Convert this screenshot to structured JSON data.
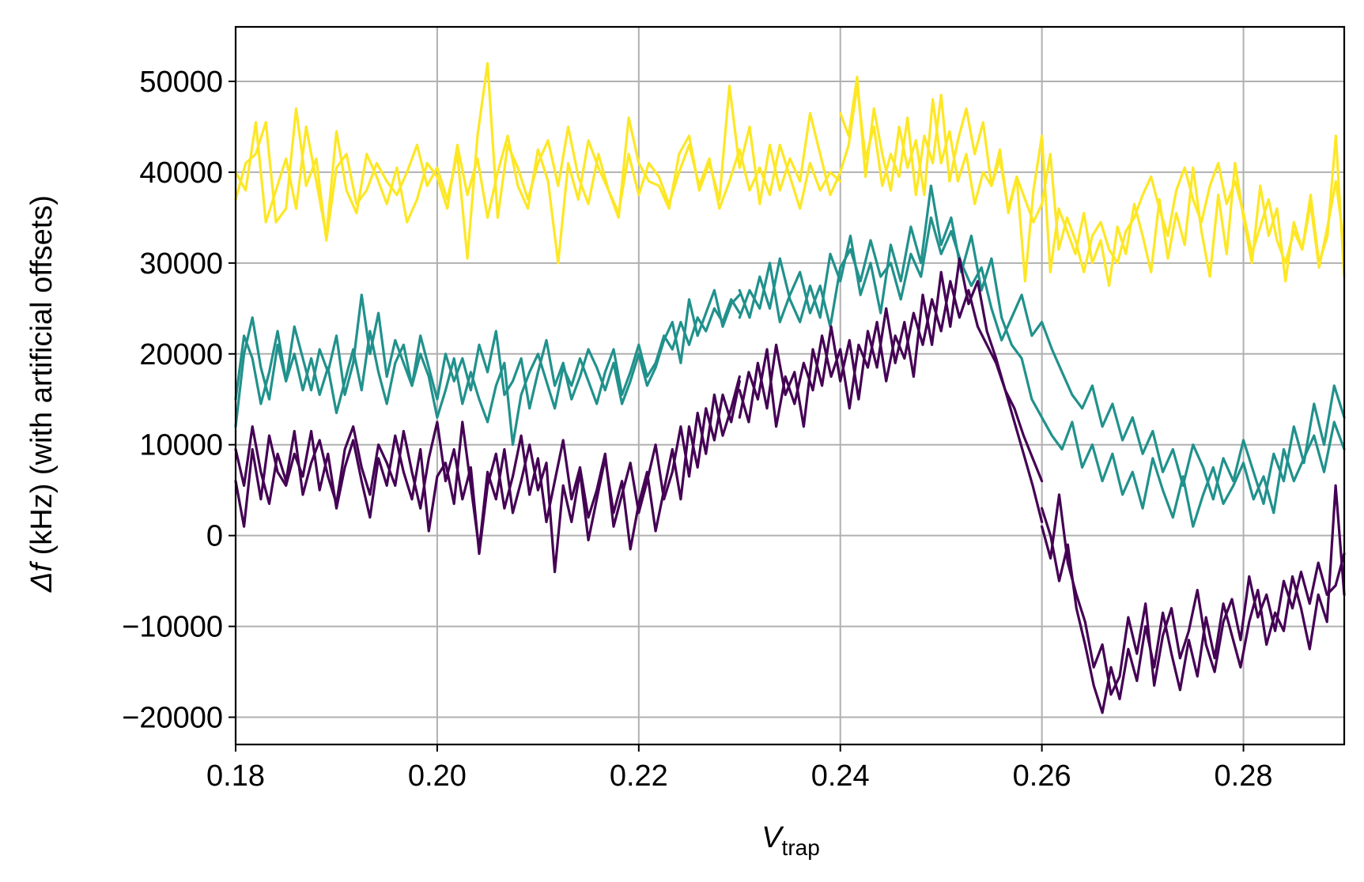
{
  "chart_data": {
    "type": "line",
    "title": "",
    "xlabel": "V",
    "xlabel_sub": "trap",
    "ylabel_symbol": "Δf",
    "ylabel": " (kHz) (with artificial offsets)",
    "xlim": [
      0.18,
      0.29
    ],
    "ylim": [
      -23000,
      56000
    ],
    "grid": true,
    "x_ticks": [
      0.18,
      0.2,
      0.22,
      0.24,
      0.26,
      0.28
    ],
    "x_tick_labels": [
      "0.18",
      "0.20",
      "0.22",
      "0.24",
      "0.26",
      "0.28"
    ],
    "y_ticks": [
      -20000,
      -10000,
      0,
      10000,
      20000,
      30000,
      40000,
      50000
    ],
    "y_tick_labels": [
      "−20000",
      "−10000",
      "0",
      "10000",
      "20000",
      "30000",
      "40000",
      "50000"
    ],
    "colors": {
      "purple": "#440154",
      "teal": "#21918c",
      "yellow": "#fde725"
    },
    "series": [
      {
        "color": "#fde725",
        "x_start": 0.18,
        "x_end": 0.24,
        "values": [
          37000,
          41000,
          42000,
          45500,
          34500,
          36000,
          47000,
          38500,
          41500,
          32500,
          40500,
          42000,
          36500,
          38000,
          41000,
          39000,
          37500,
          40000,
          43000,
          38500,
          40500,
          37000,
          42000,
          30500,
          44000,
          52000,
          35000,
          43000,
          40500,
          37000,
          41000,
          43500,
          38500,
          45000,
          39500,
          36500,
          42000,
          38000,
          35000,
          46000,
          41000,
          39000,
          38500,
          36000,
          42000,
          44000,
          38000,
          41000,
          37000,
          49500,
          40500,
          45000,
          36500,
          43000,
          38000,
          41500,
          39000,
          46500,
          42000,
          37500,
          40000
        ]
      },
      {
        "color": "#fde725",
        "x_start": 0.18,
        "x_end": 0.24,
        "values": [
          40000,
          38000,
          45500,
          34500,
          38000,
          41500,
          36000,
          45000,
          39000,
          33000,
          44500,
          38000,
          35500,
          42000,
          39500,
          36500,
          40500,
          34500,
          37000,
          41000,
          39500,
          36000,
          43000,
          37500,
          41500,
          35000,
          40000,
          44000,
          38500,
          36000,
          42500,
          39000,
          30000,
          41000,
          37000,
          43500,
          40500,
          38000,
          35500,
          42000,
          37500,
          41000,
          39500,
          36500,
          40000,
          43000,
          38500,
          41500,
          36000,
          39000,
          42500,
          38000,
          40500,
          37500,
          43000,
          39500,
          36000,
          41000,
          38000,
          40000,
          39000
        ]
      },
      {
        "color": "#fde725",
        "x_start": 0.24,
        "x_end": 0.29,
        "values": [
          40000,
          43000,
          49500,
          41500,
          45000,
          38500,
          42000,
          39500,
          46000,
          37500,
          44000,
          41000,
          48500,
          39000,
          43500,
          47000,
          42000,
          45500,
          38500,
          41500,
          36000,
          39500,
          37000,
          34500,
          36500,
          42000,
          31500,
          35000,
          32500,
          29000,
          33000,
          34500,
          31500,
          30000,
          33500,
          35000,
          37500,
          39500,
          36000,
          33000,
          38000,
          40500,
          37000,
          34500,
          38500,
          41000,
          36500,
          39000,
          35500,
          31000,
          34000,
          37000,
          32500,
          30000,
          33500,
          31500,
          36500,
          29500,
          34000,
          39000,
          32000
        ]
      },
      {
        "color": "#fde725",
        "x_start": 0.24,
        "x_end": 0.29,
        "values": [
          46500,
          44000,
          50500,
          39500,
          47000,
          42000,
          38000,
          45000,
          40500,
          43500,
          37500,
          48000,
          41000,
          44500,
          39000,
          42000,
          36500,
          40000,
          38500,
          42500,
          35500,
          39500,
          28000,
          38000,
          44000,
          29000,
          36000,
          33500,
          31000,
          35500,
          30000,
          32500,
          27500,
          34000,
          31000,
          36500,
          33000,
          29000,
          37000,
          30500,
          35500,
          32000,
          40500,
          33500,
          28500,
          37500,
          31000,
          41000,
          35000,
          30000,
          38500,
          33000,
          36000,
          28000,
          34500,
          31500,
          37500,
          30000,
          33000,
          44000,
          28500
        ]
      },
      {
        "color": "#21918c",
        "x_start": 0.18,
        "x_end": 0.23,
        "values": [
          12000,
          20000,
          24000,
          18500,
          15000,
          21000,
          17000,
          23000,
          19500,
          16000,
          20500,
          18000,
          22000,
          15500,
          19000,
          26500,
          20000,
          24500,
          17500,
          21500,
          19000,
          16500,
          22000,
          18500,
          15000,
          20000,
          17000,
          19500,
          16000,
          21000,
          18000,
          22500,
          15500,
          17000,
          19500,
          14000,
          18000,
          21500,
          16500,
          19000,
          15000,
          17500,
          20500,
          18500,
          16000,
          19000,
          14500,
          17000,
          20000,
          16500,
          18500,
          21500,
          23500,
          19000,
          26000,
          22000,
          24500,
          27000,
          23000,
          25500,
          26500
        ]
      },
      {
        "color": "#21918c",
        "x_start": 0.18,
        "x_end": 0.23,
        "values": [
          15000,
          22000,
          19500,
          14500,
          18000,
          22500,
          17000,
          20000,
          16000,
          19500,
          15500,
          18500,
          13500,
          17000,
          20500,
          16000,
          22500,
          18000,
          14500,
          19000,
          21000,
          16500,
          20000,
          17500,
          13000,
          16000,
          19500,
          14500,
          18000,
          15000,
          12500,
          16500,
          19000,
          10000,
          15500,
          18000,
          20000,
          17000,
          14000,
          18500,
          16500,
          19500,
          17000,
          14500,
          18000,
          20500,
          15500,
          18000,
          21000,
          17500,
          19000,
          22000,
          20500,
          23500,
          21000,
          24000,
          22500,
          25000,
          23500,
          26000,
          24500
        ]
      },
      {
        "color": "#21918c",
        "x_start": 0.23,
        "x_end": 0.29,
        "values": [
          24000,
          27000,
          25000,
          30000,
          23500,
          26500,
          29000,
          24500,
          27500,
          23000,
          29500,
          31500,
          28000,
          32500,
          28500,
          30000,
          26000,
          31000,
          28500,
          35000,
          31000,
          33500,
          30000,
          27500,
          29500,
          25000,
          21500,
          24000,
          26500,
          22000,
          23500,
          20500,
          18000,
          15500,
          14000,
          16500,
          12000,
          14500,
          10500,
          13000,
          9000,
          11500,
          7000,
          9500,
          5500,
          10000,
          7500,
          4000,
          8500,
          6000,
          10500,
          7000,
          3500,
          9000,
          6000,
          12000,
          8000,
          14500,
          10000,
          16500,
          13000
        ]
      },
      {
        "color": "#21918c",
        "x_start": 0.23,
        "x_end": 0.29,
        "values": [
          27000,
          24000,
          28500,
          25000,
          30500,
          26000,
          23500,
          27500,
          24000,
          31000,
          28000,
          33000,
          26500,
          30000,
          24500,
          32000,
          28000,
          34000,
          30000,
          38500,
          32000,
          35000,
          29000,
          33000,
          27000,
          30500,
          24000,
          21000,
          19500,
          15000,
          13000,
          11000,
          9500,
          12500,
          7500,
          10000,
          6000,
          9000,
          4500,
          7000,
          3000,
          8500,
          5000,
          2000,
          6500,
          1000,
          4500,
          7500,
          3500,
          5500,
          8000,
          4000,
          6500,
          2500,
          9500,
          6000,
          8500,
          11000,
          7000,
          12500,
          9500
        ]
      },
      {
        "color": "#440154",
        "x_start": 0.18,
        "x_end": 0.23,
        "values": [
          6000,
          1000,
          9500,
          4000,
          11000,
          7000,
          5500,
          9000,
          6500,
          11500,
          5000,
          9000,
          3000,
          7500,
          10500,
          6000,
          2000,
          8500,
          5500,
          11000,
          7000,
          4000,
          9500,
          500,
          6500,
          8000,
          3500,
          12500,
          5500,
          -1500,
          7000,
          4000,
          9500,
          2500,
          6000,
          10000,
          5000,
          8000,
          -4000,
          5500,
          1500,
          7000,
          -500,
          4000,
          8500,
          2500,
          6000,
          -1500,
          3500,
          7000,
          500,
          5000,
          9500,
          4000,
          12000,
          7500,
          14000,
          10500,
          15500,
          12500,
          17000
        ]
      },
      {
        "color": "#440154",
        "x_start": 0.18,
        "x_end": 0.23,
        "values": [
          9500,
          5500,
          12000,
          7000,
          3500,
          9000,
          6000,
          11500,
          4500,
          8000,
          10500,
          6500,
          3500,
          9500,
          12000,
          7500,
          4500,
          10000,
          8000,
          5500,
          11500,
          7000,
          3000,
          8500,
          12500,
          6000,
          9500,
          4000,
          7500,
          -2000,
          5500,
          9000,
          3000,
          6500,
          11000,
          4500,
          8500,
          1500,
          6000,
          10500,
          4000,
          7500,
          2000,
          5000,
          9000,
          1000,
          4500,
          8000,
          2500,
          6000,
          10000,
          4000,
          7000,
          12000,
          6500,
          13500,
          9000,
          15500,
          11000,
          14000,
          17500
        ]
      },
      {
        "color": "#440154",
        "x_start": 0.23,
        "x_end": 0.26,
        "values": [
          13000,
          18000,
          15000,
          20500,
          12000,
          17500,
          14500,
          19000,
          16000,
          22000,
          17500,
          20500,
          14000,
          21000,
          18500,
          23500,
          17000,
          22000,
          19500,
          24500,
          21000,
          26000,
          22500,
          28000,
          24000,
          27000,
          23000,
          21000,
          19000,
          16000,
          14000,
          11000,
          8500,
          6000
        ]
      },
      {
        "color": "#440154",
        "x_start": 0.23,
        "x_end": 0.26,
        "values": [
          16000,
          12500,
          19000,
          14000,
          21000,
          15500,
          18000,
          12000,
          20500,
          16500,
          23000,
          17000,
          21500,
          15000,
          22500,
          18500,
          25000,
          19000,
          23500,
          17500,
          26500,
          21000,
          29000,
          23000,
          30500,
          25500,
          28000,
          22500,
          19500,
          16000,
          12500,
          9000,
          5500,
          1500
        ]
      },
      {
        "color": "#440154",
        "x_start": 0.26,
        "x_end": 0.29,
        "values": [
          1000,
          -2500,
          4500,
          -3000,
          -6500,
          -9500,
          -14500,
          -12000,
          -17500,
          -15500,
          -9000,
          -13000,
          -7500,
          -16500,
          -11000,
          -8000,
          -13500,
          -10500,
          -6000,
          -12000,
          -15000,
          -9500,
          -7000,
          -11500,
          -4500,
          -9000,
          -6500,
          -10500,
          -5000,
          -8000,
          -4000,
          -7500,
          -3000,
          -6500,
          -5500,
          -2000
        ]
      },
      {
        "color": "#440154",
        "x_start": 0.26,
        "x_end": 0.29,
        "values": [
          3000,
          0,
          -5000,
          -1000,
          -8000,
          -12000,
          -16500,
          -19500,
          -14500,
          -18000,
          -12500,
          -16000,
          -10000,
          -14500,
          -8500,
          -13000,
          -17000,
          -11500,
          -15500,
          -9000,
          -13500,
          -7500,
          -11000,
          -14500,
          -9500,
          -6000,
          -12000,
          -8500,
          -10500,
          -4500,
          -8000,
          -12500,
          -6500,
          -9500,
          5500,
          -6500
        ]
      }
    ]
  }
}
